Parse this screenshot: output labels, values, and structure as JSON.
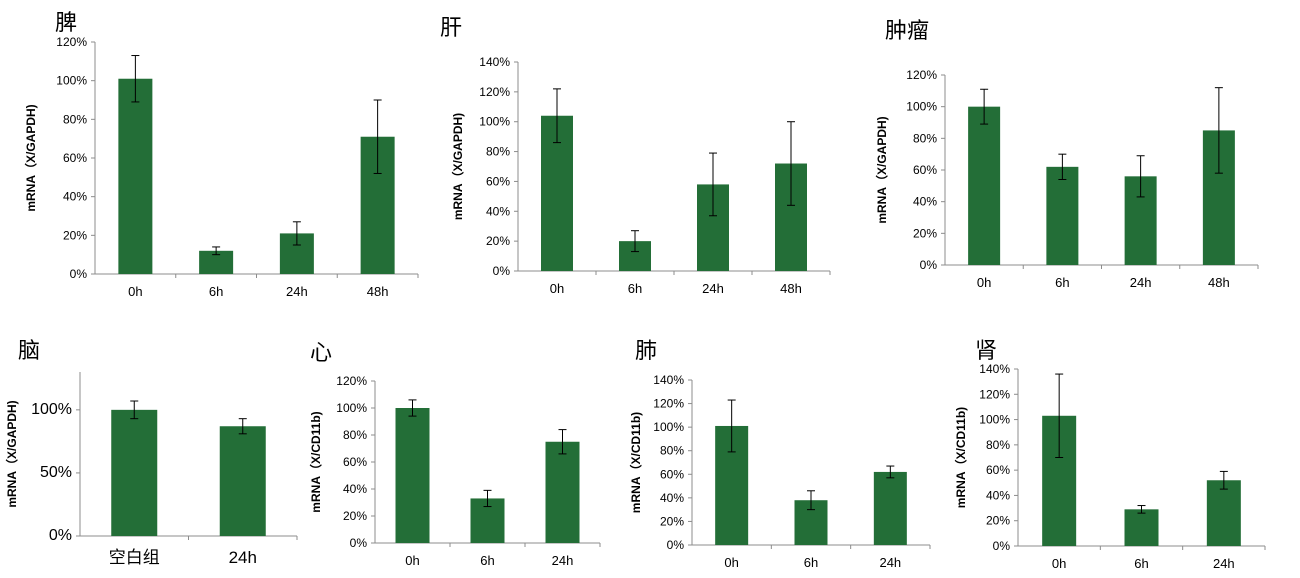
{
  "chart_data": [
    {
      "type": "bar",
      "title": "脾",
      "ylabel": "mRNA（X/GAPDH)",
      "categories": [
        "0h",
        "6h",
        "24h",
        "48h"
      ],
      "values": [
        101,
        12,
        21,
        71
      ],
      "errors": [
        12,
        2,
        6,
        19
      ],
      "ylim": [
        0,
        120
      ],
      "yticks": [
        "0%",
        "20%",
        "40%",
        "60%",
        "80%",
        "100%",
        "120%"
      ],
      "grid": false,
      "color": "#236e37"
    },
    {
      "type": "bar",
      "title": "肝",
      "ylabel": "mRNA（X/GAPDH)",
      "categories": [
        "0h",
        "6h",
        "24h",
        "48h"
      ],
      "values": [
        104,
        20,
        58,
        72
      ],
      "errors": [
        18,
        7,
        21,
        28
      ],
      "ylim": [
        0,
        140
      ],
      "yticks": [
        "0%",
        "20%",
        "40%",
        "60%",
        "80%",
        "100%",
        "120%",
        "140%"
      ],
      "grid": false,
      "color": "#236e37"
    },
    {
      "type": "bar",
      "title": "肿瘤",
      "ylabel": "mRNA（X/GAPDH)",
      "categories": [
        "0h",
        "6h",
        "24h",
        "48h"
      ],
      "values": [
        100,
        62,
        56,
        85
      ],
      "errors": [
        11,
        8,
        13,
        27
      ],
      "ylim": [
        0,
        120
      ],
      "yticks": [
        "0%",
        "20%",
        "40%",
        "60%",
        "80%",
        "100%",
        "120%"
      ],
      "grid": false,
      "color": "#236e37"
    },
    {
      "type": "bar",
      "title": "脑",
      "ylabel": "mRNA（X/GAPDH)",
      "categories": [
        "空白组",
        "24h"
      ],
      "values": [
        100,
        87
      ],
      "errors": [
        7,
        6
      ],
      "ylim": [
        0,
        130
      ],
      "yticks": [
        "0%",
        "50%",
        "100%"
      ],
      "ytick_values": [
        0,
        50,
        100
      ],
      "grid": false,
      "color": "#236e37"
    },
    {
      "type": "bar",
      "title": "心",
      "ylabel": "mRNA（X/CD11b)",
      "categories": [
        "0h",
        "6h",
        "24h"
      ],
      "values": [
        100,
        33,
        75
      ],
      "errors": [
        6,
        6,
        9
      ],
      "ylim": [
        0,
        120
      ],
      "yticks": [
        "0%",
        "20%",
        "40%",
        "60%",
        "80%",
        "100%",
        "120%"
      ],
      "grid": false,
      "color": "#236e37"
    },
    {
      "type": "bar",
      "title": "肺",
      "ylabel": "mRNA（X/CD11b)",
      "categories": [
        "0h",
        "6h",
        "24h"
      ],
      "values": [
        101,
        38,
        62
      ],
      "errors": [
        22,
        8,
        5
      ],
      "ylim": [
        0,
        140
      ],
      "yticks": [
        "0%",
        "20%",
        "40%",
        "60%",
        "80%",
        "100%",
        "120%",
        "140%"
      ],
      "grid": false,
      "color": "#236e37"
    },
    {
      "type": "bar",
      "title": "肾",
      "ylabel": "mRNA（X/CD11b)",
      "categories": [
        "0h",
        "6h",
        "24h"
      ],
      "values": [
        103,
        29,
        52
      ],
      "errors": [
        33,
        3,
        7
      ],
      "ylim": [
        0,
        140
      ],
      "yticks": [
        "0%",
        "20%",
        "40%",
        "60%",
        "80%",
        "100%",
        "120%",
        "140%"
      ],
      "grid": false,
      "color": "#236e37"
    }
  ]
}
